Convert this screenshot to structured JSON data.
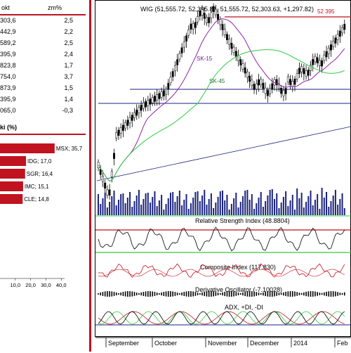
{
  "left_table": {
    "headers": [
      "okt",
      "zm%"
    ],
    "rows": [
      {
        "value": "303,6",
        "change": "2,5"
      },
      {
        "value": "442,9",
        "change": "2,2"
      },
      {
        "value": "589,2",
        "change": "2,5"
      },
      {
        "value": "395,9",
        "change": "2,4"
      },
      {
        "value": "823,8",
        "change": "1,7"
      },
      {
        "value": "754,0",
        "change": "3,7"
      },
      {
        "value": "873,9",
        "change": "1,5"
      },
      {
        "value": "395,9",
        "change": "1,4"
      },
      {
        "value": "065,0",
        "change": "-0,3"
      }
    ]
  },
  "share_chart": {
    "title": "ki (%)",
    "bar_color": "#c1121f",
    "bars": [
      {
        "label": "MSX; 35,7",
        "value": 35.7
      },
      {
        "label": "IDG; 17,0",
        "value": 17.0
      },
      {
        "label": "SGR; 16,4",
        "value": 16.4
      },
      {
        "label": "IMC; 15,1",
        "value": 15.1
      },
      {
        "label": "CLE; 14,8",
        "value": 14.8
      }
    ],
    "axis_ticks": [
      "10,0",
      "20,0",
      "30,0",
      "40,0"
    ]
  },
  "main_chart": {
    "title": "WIG (51,555.72, 52,395.81, 51,555.72, 52,303.63, +1,297.82)",
    "price_label": "52 395",
    "ma_labels": [
      "SK-15",
      "SK-45"
    ],
    "x_labels": [
      "September",
      "October",
      "November",
      "December",
      "2014",
      "Feb"
    ],
    "panels": [
      "Relative Strength Index (48.8804)",
      "Composite Index (117.830)",
      "Derivative Oscillator (-7.10028)",
      "ADX, +DI, -DI"
    ]
  },
  "chart_data": {
    "type": "line",
    "title": "WIG (51,555.72, 52,395.81, 51,555.72, 52,303.63, +1,297.82)",
    "x": [
      "September",
      "October",
      "November",
      "December",
      "2014",
      "Feb"
    ],
    "series": [
      {
        "name": "SK-15",
        "values": [
          47500,
          50800,
          53500,
          51300,
          50600,
          51600
        ]
      },
      {
        "name": "SK-45",
        "values": [
          46800,
          49200,
          51900,
          51700,
          51000,
          51100
        ]
      }
    ]
  }
}
